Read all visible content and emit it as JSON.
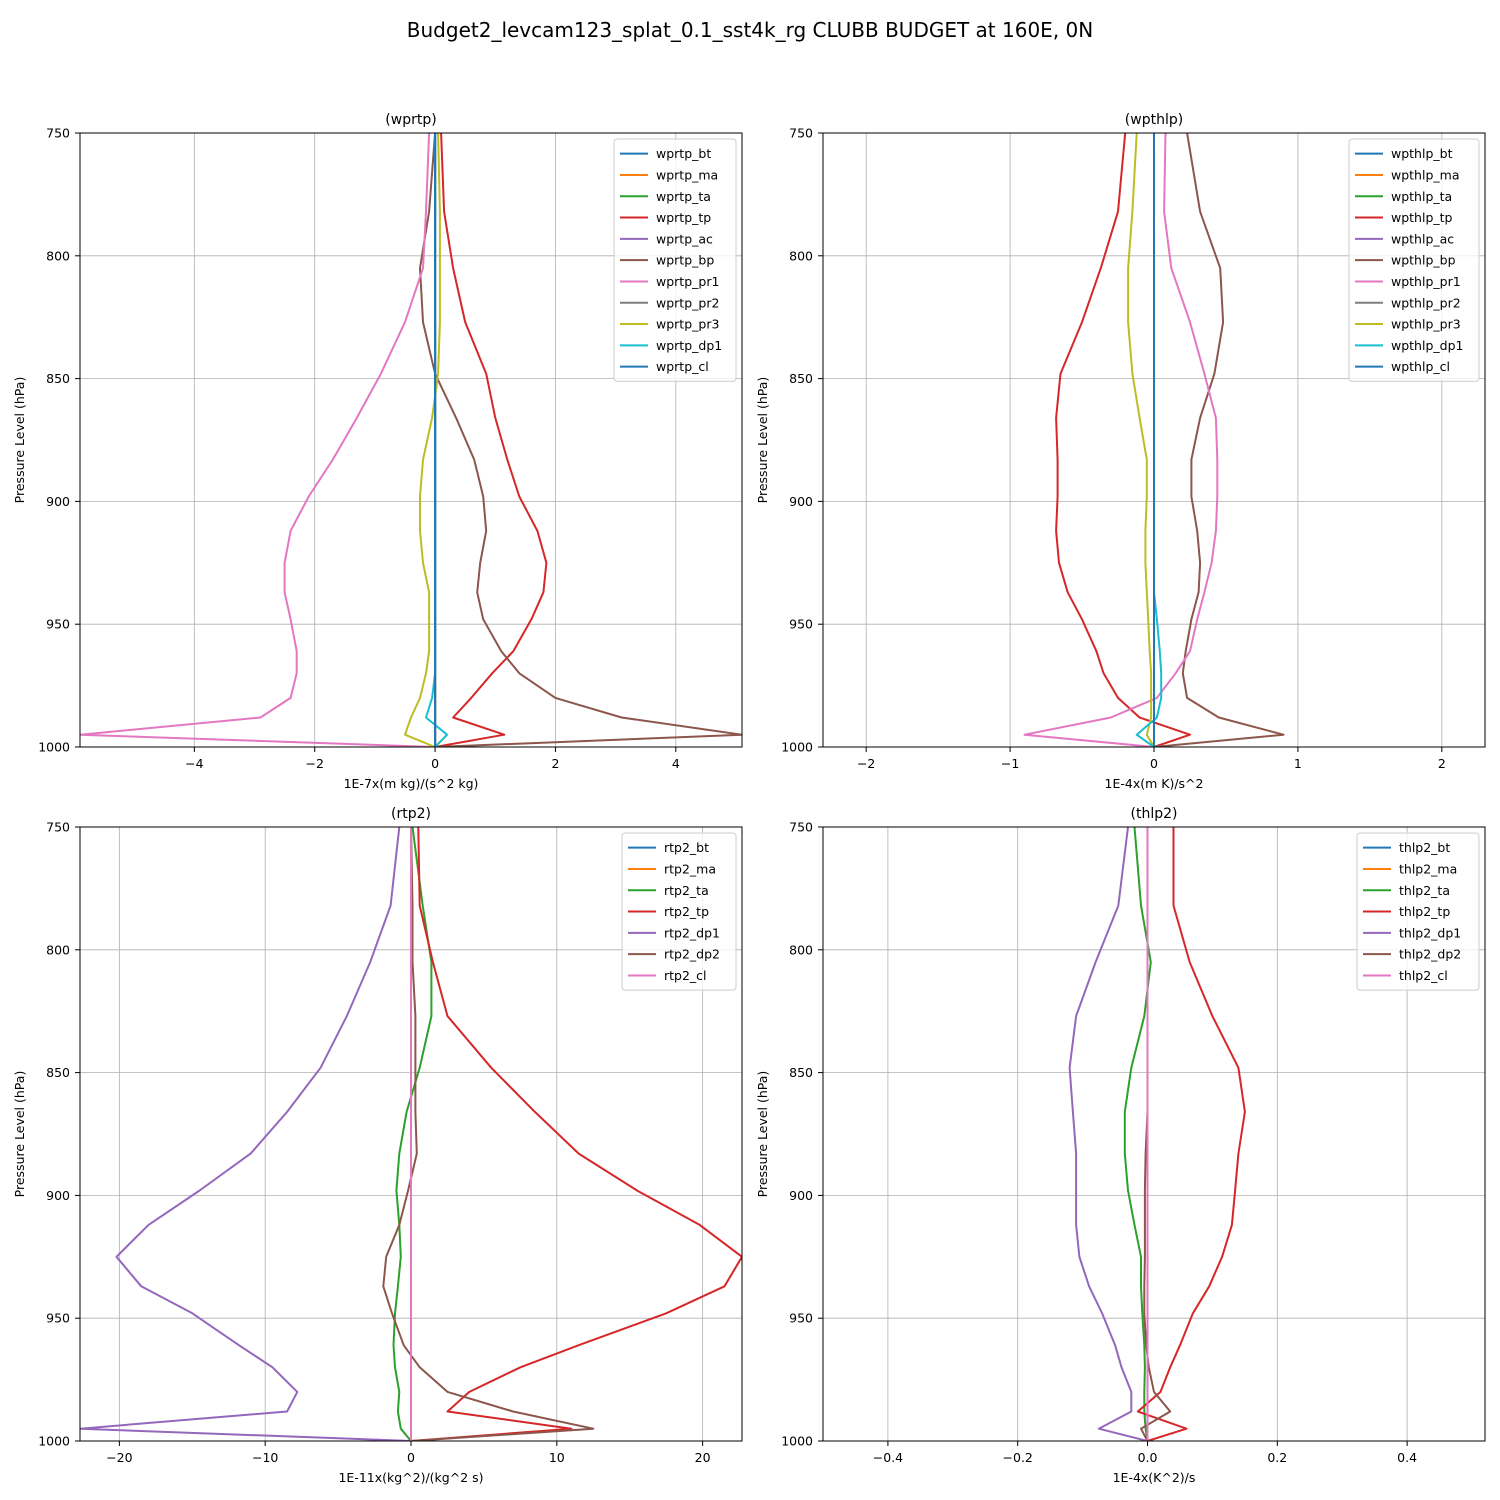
{
  "figure_title": "Budget2_levcam123_splat_0.1_sst4k_rg CLUBB BUDGET at 160E, 0N",
  "colors": [
    "#1f77b4",
    "#ff7f0e",
    "#2ca02c",
    "#d62728",
    "#9467bd",
    "#8c564b",
    "#e377c2",
    "#7f7f7f",
    "#bcbd22",
    "#17becf",
    "#1f77b4"
  ],
  "chart_data": [
    {
      "type": "line",
      "title": "(wprtp)",
      "xlabel": "1E-7x(m kg)/(s^2 kg)",
      "ylabel": "Pressure Level (hPa)",
      "xlim": [
        -5.9,
        5.1
      ],
      "ylim": [
        1000,
        750
      ],
      "xticks": [
        -4,
        -2,
        0,
        2,
        4
      ],
      "xtick_labels": [
        "−4",
        "−2",
        "0",
        "2",
        "4"
      ],
      "yticks": [
        750,
        800,
        850,
        900,
        950,
        1000
      ],
      "ytick_labels": [
        "750",
        "800",
        "850",
        "900",
        "950",
        "1000"
      ],
      "grid": true,
      "legend_position": "top-right",
      "levels": [
        750,
        782,
        805,
        827,
        848,
        866,
        883,
        898,
        912,
        925,
        937,
        948,
        961,
        970,
        980,
        988,
        995,
        1000
      ],
      "series": [
        {
          "name": "wprtp_bt",
          "values": [
            0,
            0,
            0,
            0,
            0,
            0,
            0,
            0,
            0,
            0,
            0,
            0,
            0,
            0,
            0,
            0,
            0,
            0
          ]
        },
        {
          "name": "wprtp_ma",
          "values": [
            0,
            0,
            0,
            0,
            0,
            0,
            0,
            0,
            0,
            0,
            0,
            0,
            0,
            0,
            0,
            0,
            0,
            0
          ]
        },
        {
          "name": "wprtp_ta",
          "values": [
            0,
            0,
            0,
            0,
            0,
            0,
            0,
            0,
            0,
            0,
            0,
            0,
            0,
            0,
            0,
            0,
            0,
            0
          ]
        },
        {
          "name": "wprtp_tp",
          "values": [
            0.1,
            0.15,
            0.3,
            0.5,
            0.85,
            1.0,
            1.2,
            1.4,
            1.7,
            1.85,
            1.8,
            1.6,
            1.3,
            0.95,
            0.6,
            0.3,
            1.15,
            0
          ]
        },
        {
          "name": "wprtp_ac",
          "values": [
            0,
            0,
            0,
            0,
            0,
            0,
            0,
            0,
            0,
            0,
            0,
            0,
            0,
            0,
            0,
            0,
            0,
            0
          ]
        },
        {
          "name": "wprtp_bp",
          "values": [
            0,
            -0.1,
            -0.25,
            -0.2,
            0,
            0.35,
            0.65,
            0.8,
            0.85,
            0.75,
            0.7,
            0.8,
            1.1,
            1.4,
            2.0,
            3.1,
            5.1,
            0
          ]
        },
        {
          "name": "wprtp_pr1",
          "values": [
            -0.1,
            -0.15,
            -0.2,
            -0.5,
            -0.9,
            -1.3,
            -1.7,
            -2.1,
            -2.4,
            -2.5,
            -2.5,
            -2.4,
            -2.3,
            -2.3,
            -2.4,
            -2.9,
            -5.9,
            0
          ]
        },
        {
          "name": "wprtp_pr2",
          "values": [
            0,
            0,
            0,
            0,
            0,
            0,
            0,
            0,
            0,
            0,
            0,
            0,
            0,
            0,
            0,
            0,
            0,
            0
          ]
        },
        {
          "name": "wprtp_pr3",
          "values": [
            0.05,
            0.08,
            0.08,
            0.08,
            0.05,
            -0.05,
            -0.2,
            -0.25,
            -0.25,
            -0.2,
            -0.1,
            -0.1,
            -0.1,
            -0.15,
            -0.25,
            -0.4,
            -0.5,
            0
          ]
        },
        {
          "name": "wprtp_dp1",
          "values": [
            0,
            0,
            0,
            0,
            0,
            0,
            0,
            0,
            0,
            0,
            0,
            0,
            0,
            0,
            -0.05,
            -0.15,
            0.2,
            0
          ]
        },
        {
          "name": "wprtp_cl",
          "values": [
            0,
            0,
            0,
            0,
            0,
            0,
            0,
            0,
            0,
            0,
            0,
            0,
            0,
            0,
            0,
            0,
            0,
            0
          ]
        }
      ]
    },
    {
      "type": "line",
      "title": "(wpthlp)",
      "xlabel": "1E-4x(m K)/s^2",
      "ylabel": "Pressure Level (hPa)",
      "xlim": [
        -2.3,
        2.3
      ],
      "ylim": [
        1000,
        750
      ],
      "xticks": [
        -2,
        -1,
        0,
        1,
        2
      ],
      "xtick_labels": [
        "−2",
        "−1",
        "0",
        "1",
        "2"
      ],
      "yticks": [
        750,
        800,
        850,
        900,
        950,
        1000
      ],
      "ytick_labels": [
        "750",
        "800",
        "850",
        "900",
        "950",
        "1000"
      ],
      "grid": true,
      "legend_position": "top-right",
      "levels": [
        750,
        782,
        805,
        827,
        848,
        866,
        883,
        898,
        912,
        925,
        937,
        948,
        961,
        970,
        980,
        988,
        995,
        1000
      ],
      "series": [
        {
          "name": "wpthlp_bt",
          "values": [
            0,
            0,
            0,
            0,
            0,
            0,
            0,
            0,
            0,
            0,
            0,
            0,
            0,
            0,
            0,
            0,
            0,
            0
          ]
        },
        {
          "name": "wpthlp_ma",
          "values": [
            0,
            0,
            0,
            0,
            0,
            0,
            0,
            0,
            0,
            0,
            0,
            0,
            0,
            0,
            0,
            0,
            0,
            0
          ]
        },
        {
          "name": "wpthlp_ta",
          "values": [
            0,
            0,
            0,
            0,
            0,
            0,
            0,
            0,
            0,
            0,
            0,
            0,
            0,
            0,
            0,
            0,
            0,
            0
          ]
        },
        {
          "name": "wpthlp_tp",
          "values": [
            -0.2,
            -0.25,
            -0.37,
            -0.5,
            -0.65,
            -0.68,
            -0.67,
            -0.67,
            -0.68,
            -0.66,
            -0.6,
            -0.5,
            -0.4,
            -0.35,
            -0.25,
            -0.1,
            0.25,
            0
          ]
        },
        {
          "name": "wpthlp_ac",
          "values": [
            0,
            0,
            0,
            0,
            0,
            0,
            0,
            0,
            0,
            0,
            0,
            0,
            0,
            0,
            0,
            0,
            0,
            0
          ]
        },
        {
          "name": "wpthlp_bp",
          "values": [
            0.23,
            0.32,
            0.46,
            0.48,
            0.42,
            0.32,
            0.26,
            0.26,
            0.3,
            0.32,
            0.31,
            0.26,
            0.22,
            0.2,
            0.23,
            0.45,
            0.9,
            0
          ]
        },
        {
          "name": "wpthlp_pr1",
          "values": [
            0.08,
            0.07,
            0.12,
            0.25,
            0.35,
            0.43,
            0.44,
            0.44,
            0.43,
            0.4,
            0.35,
            0.3,
            0.25,
            0.15,
            0.02,
            -0.3,
            -0.9,
            0
          ]
        },
        {
          "name": "wpthlp_pr2",
          "values": [
            0,
            0,
            0,
            0,
            0,
            0,
            0,
            0,
            0,
            0,
            0,
            0,
            0,
            0,
            0,
            0,
            0,
            0
          ]
        },
        {
          "name": "wpthlp_pr3",
          "values": [
            -0.12,
            -0.15,
            -0.18,
            -0.18,
            -0.15,
            -0.1,
            -0.05,
            -0.05,
            -0.06,
            -0.06,
            -0.05,
            -0.04,
            -0.03,
            -0.02,
            -0.02,
            -0.02,
            -0.05,
            0
          ]
        },
        {
          "name": "wpthlp_dp1",
          "values": [
            0,
            0,
            0,
            0,
            0,
            0,
            0,
            0,
            0,
            0,
            0,
            0.02,
            0.04,
            0.05,
            0.05,
            0.02,
            -0.12,
            0
          ]
        },
        {
          "name": "wpthlp_cl",
          "values": [
            0,
            0,
            0,
            0,
            0,
            0,
            0,
            0,
            0,
            0,
            0,
            0,
            0,
            0,
            0,
            0,
            0,
            0
          ]
        }
      ]
    },
    {
      "type": "line",
      "title": "(rtp2)",
      "xlabel": "1E-11x(kg^2)/(kg^2 s)",
      "ylabel": "Pressure Level (hPa)",
      "xlim": [
        -22.7,
        22.7
      ],
      "ylim": [
        1000,
        750
      ],
      "xticks": [
        -20,
        -10,
        0,
        10,
        20
      ],
      "xtick_labels": [
        "−20",
        "−10",
        "0",
        "10",
        "20"
      ],
      "yticks": [
        750,
        800,
        850,
        900,
        950,
        1000
      ],
      "ytick_labels": [
        "750",
        "800",
        "850",
        "900",
        "950",
        "1000"
      ],
      "grid": true,
      "legend_position": "top-right",
      "levels": [
        750,
        782,
        805,
        827,
        848,
        866,
        883,
        898,
        912,
        925,
        937,
        948,
        961,
        970,
        980,
        988,
        995,
        1000
      ],
      "series": [
        {
          "name": "rtp2_bt",
          "values": [
            0,
            0,
            0,
            0,
            0,
            0,
            0,
            0,
            0,
            0,
            0,
            0,
            0,
            0,
            0,
            0,
            0,
            0
          ]
        },
        {
          "name": "rtp2_ma",
          "values": [
            0,
            0,
            0,
            0,
            0,
            0,
            0,
            0,
            0,
            0,
            0,
            0,
            0,
            0,
            0,
            0,
            0,
            0
          ]
        },
        {
          "name": "rtp2_ta",
          "values": [
            0.1,
            0.8,
            1.4,
            1.4,
            0.6,
            -0.3,
            -0.8,
            -1.0,
            -0.8,
            -0.7,
            -0.9,
            -1.1,
            -1.2,
            -1.1,
            -0.8,
            -0.9,
            -0.7,
            0
          ]
        },
        {
          "name": "rtp2_tp",
          "values": [
            0.5,
            0.6,
            1.5,
            2.5,
            5.5,
            8.5,
            11.5,
            15.5,
            19.8,
            22.7,
            21.5,
            17.5,
            11.5,
            7.5,
            4.0,
            2.5,
            11.0,
            0
          ]
        },
        {
          "name": "rtp2_dp1",
          "values": [
            -0.8,
            -1.4,
            -2.8,
            -4.4,
            -6.2,
            -8.5,
            -11.0,
            -14.5,
            -18.0,
            -20.2,
            -18.5,
            -15.0,
            -11.8,
            -9.5,
            -7.8,
            -8.5,
            -22.7,
            0
          ]
        },
        {
          "name": "rtp2_dp2",
          "values": [
            0,
            0.1,
            0.1,
            0.3,
            0.3,
            0.3,
            0.4,
            -0.2,
            -0.8,
            -1.7,
            -1.9,
            -1.3,
            -0.5,
            0.6,
            2.5,
            7.0,
            12.5,
            0
          ]
        },
        {
          "name": "rtp2_cl",
          "values": [
            0,
            0,
            0,
            0,
            0,
            0,
            0,
            0,
            0,
            0,
            0,
            0,
            0,
            0,
            0,
            0,
            0,
            0
          ]
        }
      ]
    },
    {
      "type": "line",
      "title": "(thlp2)",
      "xlabel": "1E-4x(K^2)/s",
      "ylabel": "Pressure Level (hPa)",
      "xlim": [
        -0.5,
        0.52
      ],
      "ylim": [
        1000,
        750
      ],
      "xticks": [
        -0.4,
        -0.2,
        0.0,
        0.2,
        0.4
      ],
      "xtick_labels": [
        "−0.4",
        "−0.2",
        "0.0",
        "0.2",
        "0.4"
      ],
      "yticks": [
        750,
        800,
        850,
        900,
        950,
        1000
      ],
      "ytick_labels": [
        "750",
        "800",
        "850",
        "900",
        "950",
        "1000"
      ],
      "grid": true,
      "legend_position": "top-right",
      "levels": [
        750,
        782,
        805,
        827,
        848,
        866,
        883,
        898,
        912,
        925,
        937,
        948,
        961,
        970,
        980,
        988,
        995,
        1000
      ],
      "series": [
        {
          "name": "thlp2_bt",
          "values": [
            0,
            0,
            0,
            0,
            0,
            0,
            0,
            0,
            0,
            0,
            0,
            0,
            0,
            0,
            0,
            0,
            0,
            0
          ]
        },
        {
          "name": "thlp2_ma",
          "values": [
            0,
            0,
            0,
            0,
            0,
            0,
            0,
            0,
            0,
            0,
            0,
            0,
            0,
            0,
            0,
            0,
            0,
            0
          ]
        },
        {
          "name": "thlp2_ta",
          "values": [
            -0.02,
            -0.01,
            0.005,
            -0.005,
            -0.025,
            -0.035,
            -0.035,
            -0.03,
            -0.02,
            -0.01,
            -0.01,
            -0.008,
            -0.005,
            -0.004,
            -0.005,
            -0.005,
            -0.003,
            0
          ]
        },
        {
          "name": "thlp2_tp",
          "values": [
            0.04,
            0.04,
            0.065,
            0.1,
            0.14,
            0.15,
            0.14,
            0.135,
            0.13,
            0.115,
            0.095,
            0.07,
            0.05,
            0.035,
            0.02,
            -0.015,
            0.06,
            0
          ]
        },
        {
          "name": "thlp2_dp1",
          "values": [
            -0.03,
            -0.045,
            -0.08,
            -0.11,
            -0.12,
            -0.115,
            -0.11,
            -0.11,
            -0.11,
            -0.105,
            -0.09,
            -0.07,
            -0.05,
            -0.04,
            -0.025,
            -0.025,
            -0.075,
            0
          ]
        },
        {
          "name": "thlp2_dp2",
          "values": [
            0,
            0,
            0,
            0,
            0,
            0,
            -0.003,
            -0.004,
            -0.004,
            -0.004,
            -0.005,
            -0.005,
            -0.002,
            0.002,
            0.01,
            0.035,
            -0.01,
            0
          ]
        },
        {
          "name": "thlp2_cl",
          "values": [
            0,
            0,
            0,
            0,
            0,
            0,
            0,
            0,
            0,
            0,
            0,
            0,
            0,
            0,
            0,
            0,
            0,
            0
          ]
        }
      ]
    }
  ]
}
